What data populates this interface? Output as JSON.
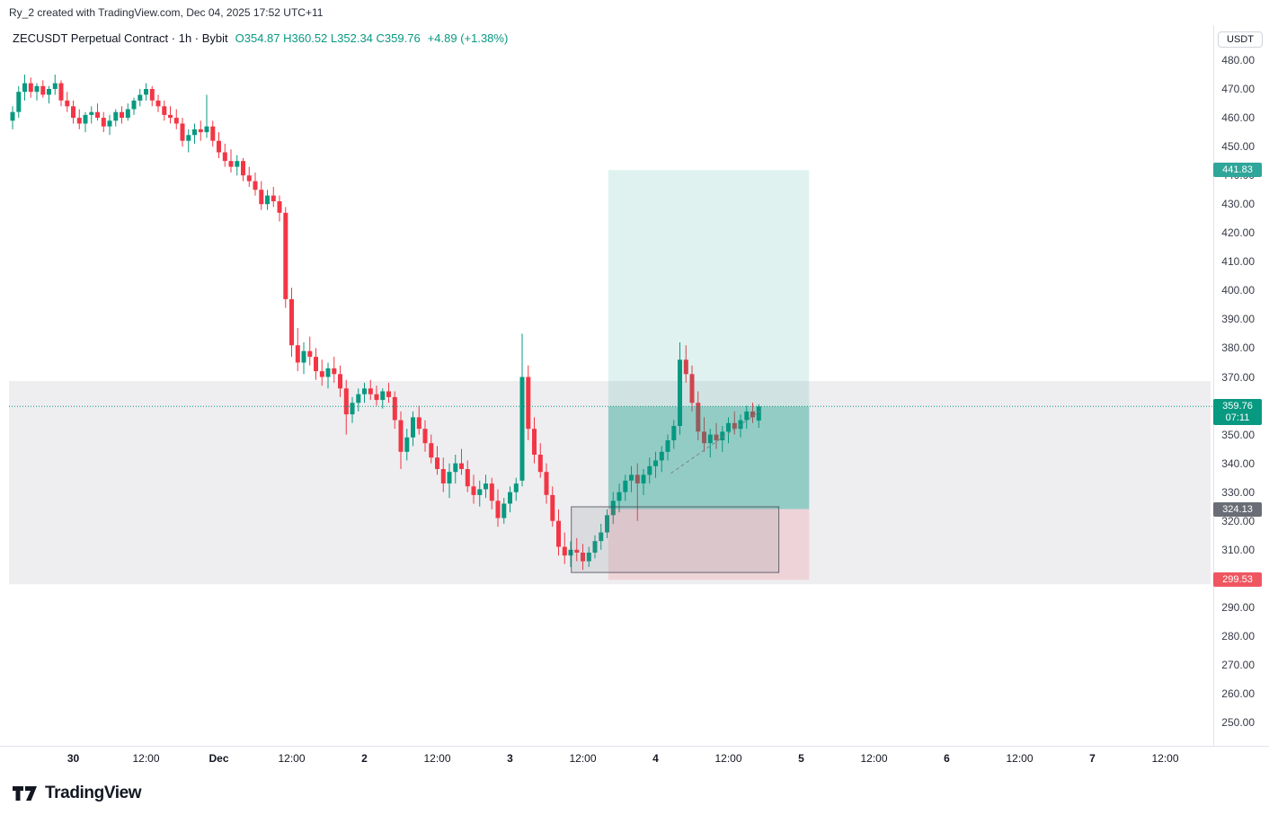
{
  "watermark": "Ry_2 created with TradingView.com, Dec 04, 2025 17:52 UTC+11",
  "header": {
    "symbol_title": "ZECUSDT Perpetual Contract · 1h · Bybit",
    "ohlc": [
      {
        "label": "O",
        "value": "354.87"
      },
      {
        "label": "H",
        "value": "360.52"
      },
      {
        "label": "L",
        "value": "352.34"
      },
      {
        "label": "C",
        "value": "359.76"
      }
    ],
    "change": "+4.89 (+1.38%)"
  },
  "price_axis": {
    "currency_button": "USDT",
    "tick_max": 480,
    "tick_min": 250,
    "tick_step": 10,
    "badges": [
      {
        "name": "target-price-label",
        "text": "441.83",
        "price": 441.83,
        "bg": "#2fa69a"
      },
      {
        "name": "last-price-label",
        "text": "359.76",
        "sub": "07:11",
        "price": 359.76,
        "bg": "#089981"
      },
      {
        "name": "entry-price-label",
        "text": "324.13",
        "price": 324.13,
        "bg": "#6a6d76"
      },
      {
        "name": "stop-price-label",
        "text": "299.53",
        "price": 299.53,
        "bg": "#ef5660"
      }
    ]
  },
  "time_axis": {
    "labels": [
      {
        "text": "30",
        "i": 10,
        "major": true
      },
      {
        "text": "12:00",
        "i": 22,
        "major": false
      },
      {
        "text": "Dec",
        "i": 34,
        "major": true
      },
      {
        "text": "12:00",
        "i": 46,
        "major": false
      },
      {
        "text": "2",
        "i": 58,
        "major": true
      },
      {
        "text": "12:00",
        "i": 70,
        "major": false
      },
      {
        "text": "3",
        "i": 82,
        "major": true
      },
      {
        "text": "12:00",
        "i": 94,
        "major": false
      },
      {
        "text": "4",
        "i": 106,
        "major": true
      },
      {
        "text": "12:00",
        "i": 118,
        "major": false
      },
      {
        "text": "5",
        "i": 130,
        "major": true
      },
      {
        "text": "12:00",
        "i": 142,
        "major": false
      },
      {
        "text": "6",
        "i": 154,
        "major": true
      },
      {
        "text": "12:00",
        "i": 166,
        "major": false
      },
      {
        "text": "7",
        "i": 178,
        "major": true
      },
      {
        "text": "12:00",
        "i": 190,
        "major": false
      }
    ]
  },
  "chart_data": {
    "type": "candlestick",
    "title": "ZECUSDT Perpetual Contract",
    "interval": "1h",
    "exchange": "Bybit",
    "up_color": "#089981",
    "down_color": "#f23645",
    "ylim": [
      245,
      484
    ],
    "last_price": 359.76,
    "countdown": "07:11",
    "candles": [
      [
        459,
        464,
        456,
        462
      ],
      [
        462,
        471,
        460,
        469
      ],
      [
        469,
        475,
        466,
        472
      ],
      [
        472,
        474,
        467,
        469
      ],
      [
        469,
        472,
        466,
        471
      ],
      [
        471,
        473,
        467,
        468
      ],
      [
        468,
        471,
        465,
        470
      ],
      [
        470,
        475,
        468,
        472
      ],
      [
        472,
        473,
        464,
        466
      ],
      [
        466,
        469,
        462,
        464
      ],
      [
        464,
        466,
        458,
        460
      ],
      [
        460,
        463,
        456,
        458
      ],
      [
        458,
        462,
        455,
        461
      ],
      [
        461,
        464,
        458,
        462
      ],
      [
        462,
        465,
        459,
        460
      ],
      [
        460,
        462,
        455,
        457
      ],
      [
        457,
        461,
        454,
        459
      ],
      [
        459,
        463,
        457,
        462
      ],
      [
        462,
        464,
        458,
        460
      ],
      [
        460,
        465,
        459,
        463
      ],
      [
        463,
        467,
        461,
        466
      ],
      [
        466,
        470,
        464,
        468
      ],
      [
        468,
        472,
        466,
        470
      ],
      [
        470,
        471,
        464,
        466
      ],
      [
        466,
        468,
        462,
        464
      ],
      [
        464,
        466,
        459,
        461
      ],
      [
        461,
        464,
        458,
        460
      ],
      [
        460,
        463,
        456,
        458
      ],
      [
        458,
        460,
        450,
        452
      ],
      [
        452,
        456,
        448,
        454
      ],
      [
        454,
        458,
        451,
        456
      ],
      [
        456,
        459,
        452,
        455
      ],
      [
        455,
        468,
        453,
        457
      ],
      [
        457,
        459,
        450,
        452
      ],
      [
        452,
        455,
        446,
        448
      ],
      [
        448,
        451,
        443,
        445
      ],
      [
        445,
        449,
        441,
        443
      ],
      [
        443,
        447,
        440,
        445
      ],
      [
        445,
        446,
        438,
        440
      ],
      [
        440,
        443,
        436,
        438
      ],
      [
        438,
        441,
        433,
        435
      ],
      [
        435,
        438,
        428,
        430
      ],
      [
        430,
        435,
        428,
        433
      ],
      [
        433,
        436,
        429,
        431
      ],
      [
        431,
        433,
        424,
        427
      ],
      [
        427,
        429,
        394,
        397
      ],
      [
        397,
        401,
        377,
        381
      ],
      [
        381,
        387,
        372,
        375
      ],
      [
        375,
        382,
        371,
        379
      ],
      [
        379,
        384,
        374,
        377
      ],
      [
        377,
        380,
        369,
        372
      ],
      [
        372,
        376,
        367,
        370
      ],
      [
        370,
        375,
        366,
        373
      ],
      [
        373,
        377,
        368,
        371
      ],
      [
        371,
        374,
        363,
        366
      ],
      [
        366,
        369,
        350,
        357
      ],
      [
        357,
        363,
        354,
        361
      ],
      [
        361,
        366,
        358,
        364
      ],
      [
        364,
        368,
        361,
        366
      ],
      [
        366,
        369,
        362,
        364
      ],
      [
        364,
        367,
        360,
        362
      ],
      [
        362,
        366,
        359,
        365
      ],
      [
        365,
        368,
        361,
        363
      ],
      [
        363,
        365,
        352,
        355
      ],
      [
        355,
        358,
        338,
        344
      ],
      [
        344,
        352,
        341,
        349
      ],
      [
        349,
        358,
        346,
        356
      ],
      [
        356,
        360,
        350,
        352
      ],
      [
        352,
        355,
        344,
        347
      ],
      [
        347,
        350,
        340,
        342
      ],
      [
        342,
        346,
        336,
        338
      ],
      [
        338,
        342,
        330,
        333
      ],
      [
        333,
        340,
        328,
        337
      ],
      [
        337,
        343,
        333,
        340
      ],
      [
        340,
        345,
        336,
        338
      ],
      [
        338,
        341,
        330,
        332
      ],
      [
        332,
        336,
        326,
        329
      ],
      [
        329,
        334,
        325,
        331
      ],
      [
        331,
        336,
        328,
        333
      ],
      [
        333,
        335,
        324,
        327
      ],
      [
        327,
        331,
        318,
        321
      ],
      [
        321,
        328,
        319,
        326
      ],
      [
        326,
        332,
        323,
        330
      ],
      [
        330,
        335,
        327,
        333
      ],
      [
        334,
        385,
        332,
        370
      ],
      [
        370,
        374,
        348,
        352
      ],
      [
        352,
        356,
        340,
        343
      ],
      [
        343,
        347,
        335,
        337
      ],
      [
        337,
        340,
        326,
        329
      ],
      [
        329,
        332,
        318,
        320
      ],
      [
        320,
        324,
        308,
        311
      ],
      [
        311,
        316,
        305,
        308
      ],
      [
        308,
        313,
        304,
        310
      ],
      [
        310,
        314,
        306,
        309
      ],
      [
        309,
        312,
        303,
        306
      ],
      [
        306,
        311,
        304,
        309
      ],
      [
        309,
        315,
        307,
        313
      ],
      [
        313,
        319,
        310,
        316
      ],
      [
        316,
        324,
        314,
        322
      ],
      [
        322,
        330,
        319,
        327
      ],
      [
        327,
        333,
        323,
        330
      ],
      [
        330,
        336,
        327,
        334
      ],
      [
        334,
        339,
        330,
        336
      ],
      [
        336,
        340,
        320,
        333
      ],
      [
        333,
        338,
        329,
        336
      ],
      [
        336,
        342,
        333,
        339
      ],
      [
        339,
        344,
        335,
        341
      ],
      [
        341,
        346,
        337,
        344
      ],
      [
        344,
        350,
        341,
        348
      ],
      [
        348,
        355,
        345,
        353
      ],
      [
        353,
        382,
        350,
        376
      ],
      [
        376,
        381,
        368,
        371
      ],
      [
        371,
        374,
        358,
        361
      ],
      [
        361,
        365,
        348,
        351
      ],
      [
        351,
        356,
        344,
        347
      ],
      [
        347,
        352,
        342,
        350
      ],
      [
        350,
        354,
        345,
        348
      ],
      [
        348,
        353,
        344,
        351
      ],
      [
        351,
        356,
        347,
        354
      ],
      [
        354,
        358,
        350,
        352
      ],
      [
        352,
        357,
        349,
        355
      ],
      [
        355,
        360,
        352,
        358
      ],
      [
        358,
        361,
        354,
        356
      ],
      [
        354.87,
        360.52,
        352.34,
        359.76
      ]
    ],
    "overlays": {
      "gray_band": {
        "price_top": 368.6,
        "price_bottom": 298.0,
        "color": "#9598a1",
        "opacity": 0.16
      },
      "long_position": {
        "entry": 324.13,
        "target": 441.83,
        "stop": 299.53,
        "current": 359.76,
        "i_start": 98.2,
        "i_end": 131.3,
        "profit_color": "#089981",
        "profit_opacity": 0.13,
        "profit_filled_opacity": 0.3,
        "loss_color": "#f23645",
        "loss_opacity": 0.14
      },
      "rectangle": {
        "price_top": 324.9,
        "price_bottom": 302.1,
        "i_start": 92.1,
        "i_end": 126.3,
        "fill": "#787b86",
        "fill_opacity": 0.16,
        "stroke": "#3c404c"
      },
      "dashed_line": {
        "from": {
          "i": 108.5,
          "price": 336.5
        },
        "to": {
          "i": 123.5,
          "price": 358.5
        },
        "color": "#7e838c"
      },
      "last_price_line": {
        "price": 359.76,
        "color": "#089981"
      }
    }
  },
  "footer": {
    "logo_text": "TradingView"
  }
}
